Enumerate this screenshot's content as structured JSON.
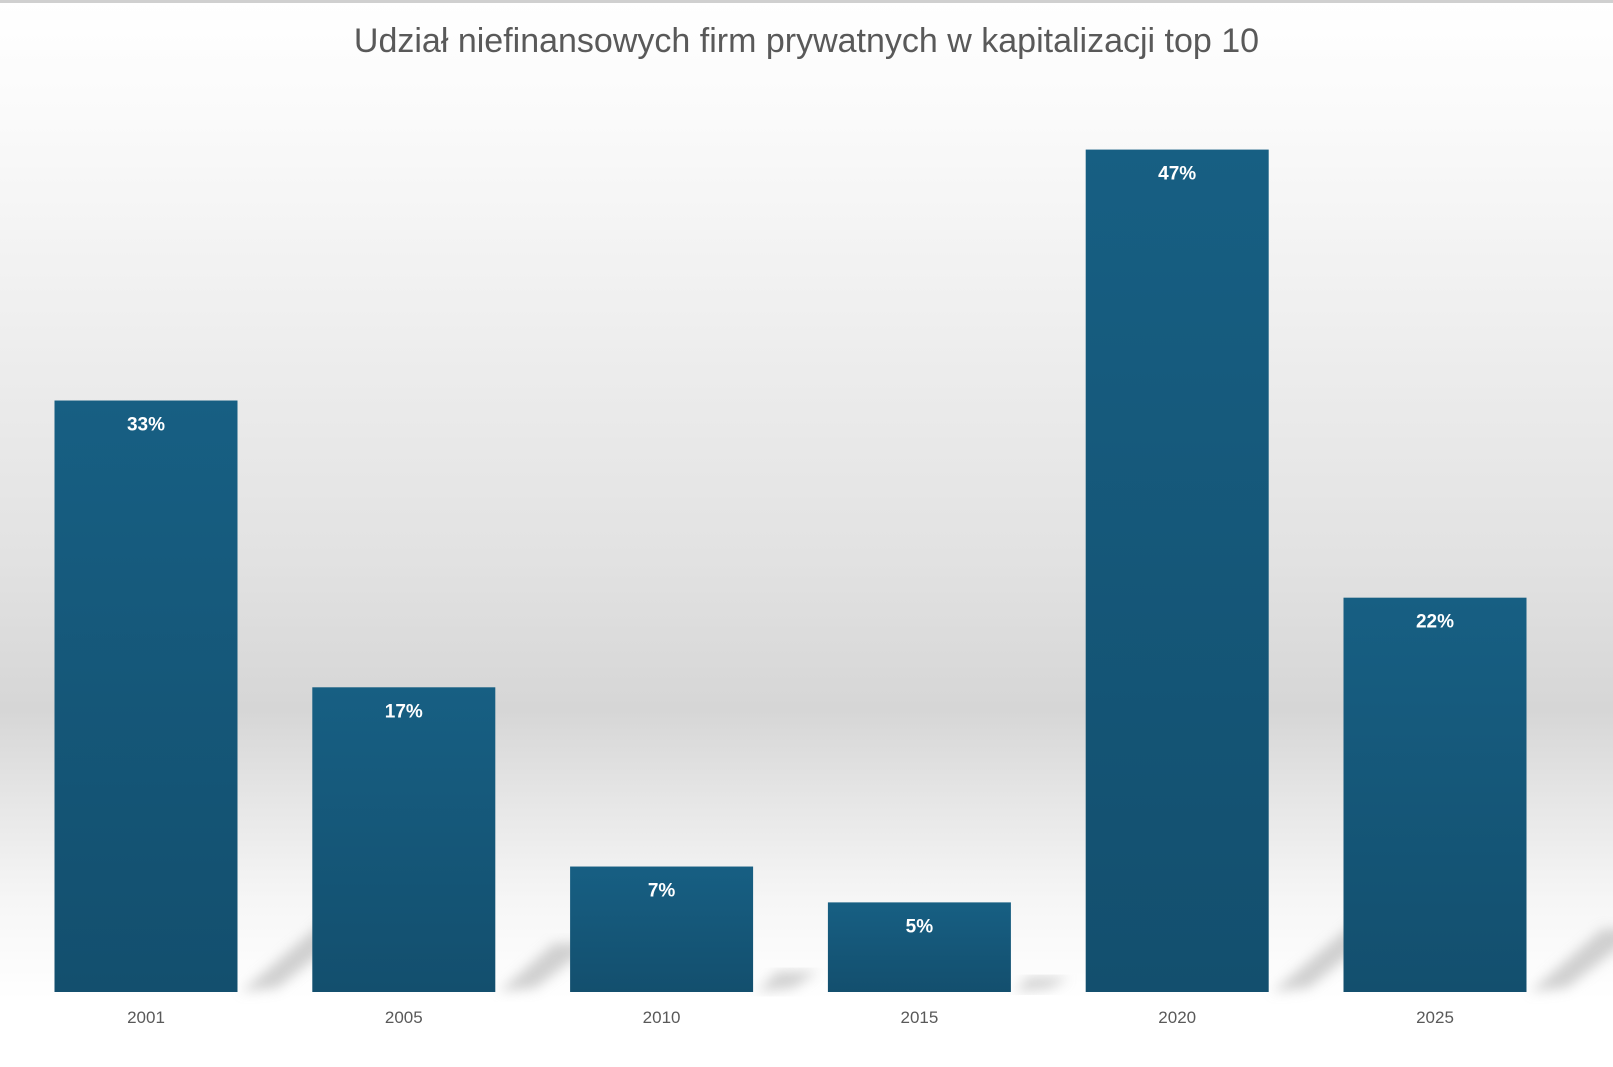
{
  "chart_data": {
    "type": "bar",
    "title": "Udział niefinansowych firm prywatnych w kapitalizacji top 10",
    "xlabel": "",
    "ylabel": "",
    "categories": [
      "2001",
      "2005",
      "2010",
      "2015",
      "2020",
      "2025"
    ],
    "values": [
      33,
      17,
      7,
      5,
      47,
      22
    ],
    "data_labels": [
      "33%",
      "17%",
      "7%",
      "5%",
      "47%",
      "22%"
    ],
    "value_unit": "%",
    "ylim": [
      0,
      50
    ],
    "grid": false,
    "legend": "none",
    "colors": {
      "bar_top": "#175f83",
      "bar_bottom": "#134f6e",
      "data_label": "#ffffff",
      "tick_label": "#595959",
      "title": "#595959",
      "shadow": "#bdbdbd"
    }
  }
}
